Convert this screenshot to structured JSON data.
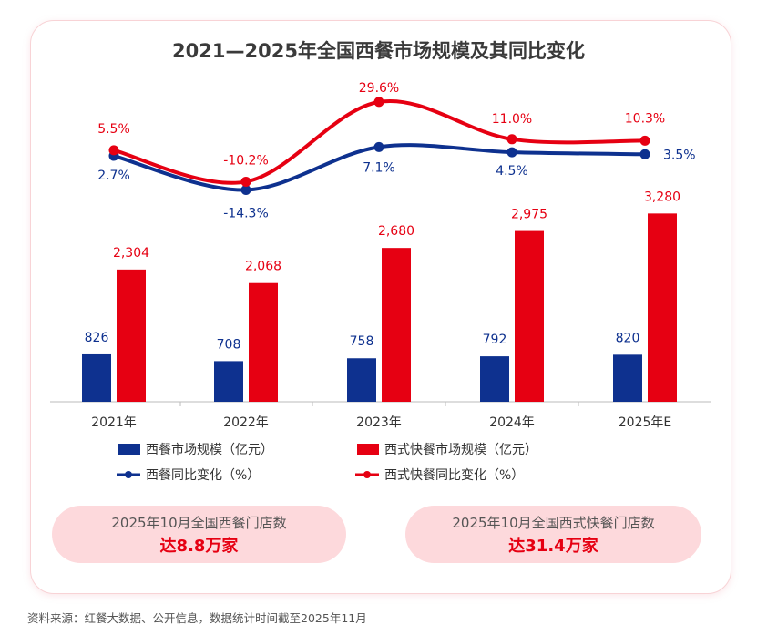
{
  "chart_data": {
    "type": "bar+line",
    "title": "2021—2025年全国西餐市场规模及其同比变化",
    "categories": [
      "2021年",
      "2022年",
      "2023年",
      "2024年",
      "2025年E"
    ],
    "bar_series": [
      {
        "name": "西餐市场规模（亿元）",
        "color": "#0e318f",
        "values": [
          826,
          708,
          758,
          792,
          820
        ],
        "labels": [
          "826",
          "708",
          "758",
          "792",
          "820"
        ]
      },
      {
        "name": "西式快餐市场规模（亿元）",
        "color": "#e60012",
        "values": [
          2304,
          2068,
          2680,
          2975,
          3280
        ],
        "labels": [
          "2,304",
          "2,068",
          "2,680",
          "2,975",
          "3,280"
        ]
      }
    ],
    "line_series": [
      {
        "name": "西餐同比变化（%）",
        "color": "#0e318f",
        "values": [
          2.7,
          -14.3,
          7.1,
          4.5,
          3.5
        ],
        "labels": [
          "2.7%",
          "-14.3%",
          "7.1%",
          "4.5%",
          "3.5%"
        ]
      },
      {
        "name": "西式快餐同比变化（%）",
        "color": "#e60012",
        "values": [
          5.5,
          -10.2,
          29.6,
          11.0,
          10.3
        ],
        "labels": [
          "5.5%",
          "-10.2%",
          "29.6%",
          "11.0%",
          "10.3%"
        ]
      }
    ],
    "legend": "bottom",
    "grid": false
  },
  "pills": [
    {
      "line1": "2025年10月全国西餐门店数",
      "line2": "达8.8万家"
    },
    {
      "line1": "2025年10月全国西式快餐门店数",
      "line2": "达31.4万家"
    }
  ],
  "footnote": "资料来源：红餐大数据、公开信息，数据统计时间截至2025年11月"
}
